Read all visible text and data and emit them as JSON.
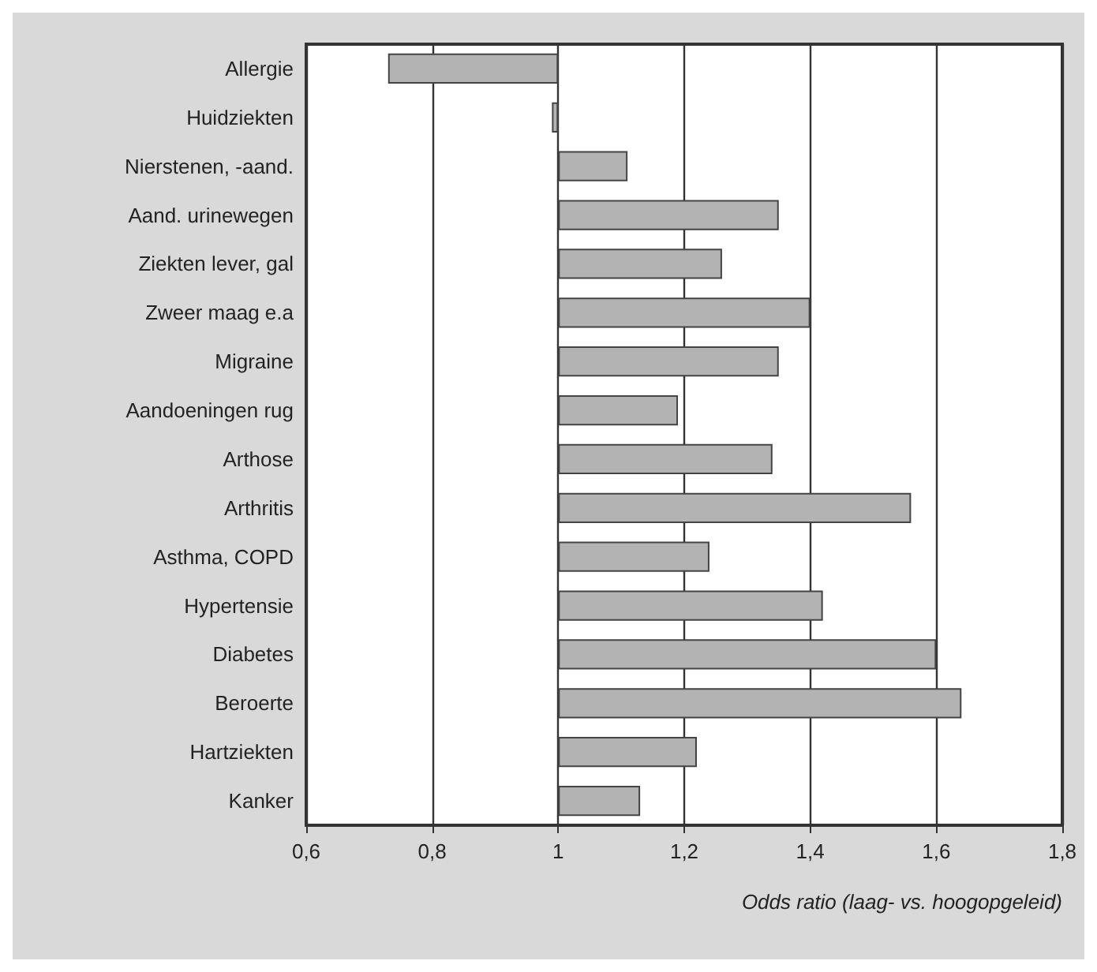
{
  "chart_data": {
    "type": "bar",
    "orientation": "horizontal",
    "xlabel": "Odds ratio (laag- vs. hoogopgeleid)",
    "categories": [
      "Allergie",
      "Huidziekten",
      "Nierstenen, -aand.",
      "Aand. urinewegen",
      "Ziekten lever, gal",
      "Zweer maag e.a",
      "Migraine",
      "Aandoeningen rug",
      "Arthose",
      "Arthritis",
      "Asthma, COPD",
      "Hypertensie",
      "Diabetes",
      "Beroerte",
      "Hartziekten",
      "Kanker"
    ],
    "base": [
      1,
      1,
      1,
      1,
      1,
      1,
      1,
      1,
      1,
      1,
      1,
      1,
      1,
      1,
      1,
      1
    ],
    "values": [
      -0.27,
      -0.01,
      0.11,
      0.35,
      0.26,
      0.4,
      0.35,
      0.19,
      0.34,
      0.56,
      0.24,
      0.42,
      0.6,
      0.64,
      0.22,
      0.13
    ],
    "color": "#b3b3b3",
    "xlim": [
      0.6,
      1.8
    ],
    "xticks": [
      {
        "value": 0.6,
        "label": "0,6"
      },
      {
        "value": 0.8,
        "label": "0,8"
      },
      1,
      {
        "value": 1.2,
        "label": "1,2"
      },
      {
        "value": 1.4,
        "label": "1,4"
      },
      {
        "value": 1.6,
        "label": "1,6"
      },
      {
        "value": 1.8,
        "label": "1,8"
      }
    ],
    "grid": "x"
  }
}
